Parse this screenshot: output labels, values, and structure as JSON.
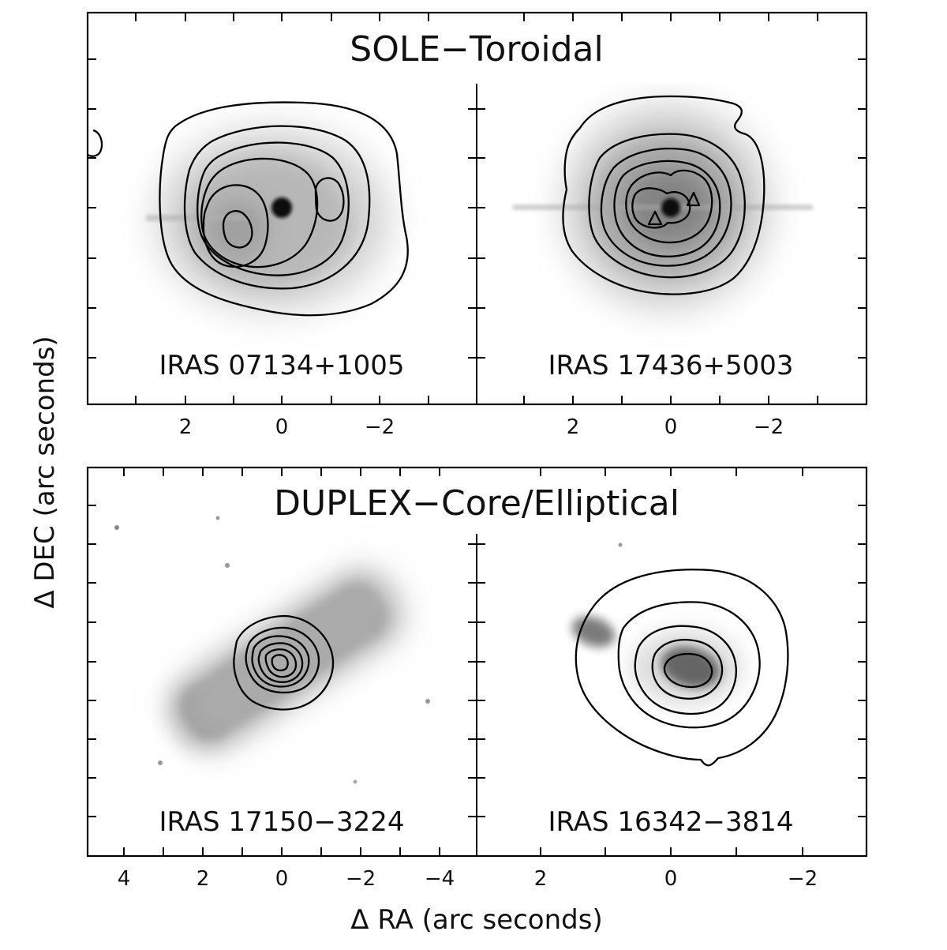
{
  "figure": {
    "y_axis_label": "Δ DEC (arc seconds)",
    "x_axis_label": "Δ RA (arc seconds)"
  },
  "groups": [
    {
      "title": "SOLE−Toroidal",
      "x_ticks": [
        "2",
        "0",
        "−2"
      ]
    },
    {
      "title": "DUPLEX−Core/Elliptical",
      "x_ticks_left": [
        "4",
        "2",
        "0",
        "−2",
        "−4"
      ],
      "x_ticks_right": [
        "2",
        "0",
        "−2"
      ]
    }
  ],
  "panels": [
    {
      "id": "IRAS 07134+1005",
      "group": "SOLE−Toroidal",
      "contours": "five nested oval contours with two inner peaks on either side of a bright central star"
    },
    {
      "id": "IRAS 17436+5003",
      "group": "SOLE−Toroidal",
      "contours": "seven nested irregular contours around a bright central star"
    },
    {
      "id": "IRAS 17150-3224",
      "group": "DUPLEX−Core/Elliptical",
      "contours": "six compact nested contours on the core of a bipolar nebula"
    },
    {
      "id": "IRAS 16342-3814",
      "group": "DUPLEX−Core/Elliptical",
      "contours": "five nested elliptical contours around an offset core"
    }
  ],
  "labels": {
    "p1": "IRAS 07134+1005",
    "p2": "IRAS 17436+5003",
    "p3": "IRAS 17150−3224",
    "p4": "IRAS 16342−3814"
  },
  "colors": {
    "background": "#ffffff",
    "ink": "#000000",
    "image_gray": "#7a7a7a"
  }
}
